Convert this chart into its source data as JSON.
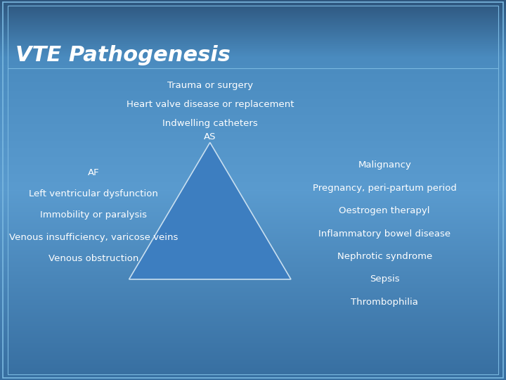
{
  "title": "VTE Pathogenesis",
  "bg_color_main": "#4a8bbf",
  "bg_color_dark": "#2d5f8a",
  "title_color": "#ffffff",
  "title_fontsize": 22,
  "top_center_labels": [
    "Trauma or surgery",
    "Heart valve disease or replacement",
    "Indwelling catheters",
    "AS"
  ],
  "left_labels": [
    "AF",
    "Left ventricular dysfunction",
    "Immobility or paralysis",
    "Venous insufficiency, varicose veins",
    "Venous obstruction"
  ],
  "right_labels": [
    "Malignancy",
    "Pregnancy, peri-partum period",
    "Oestrogen therapyl",
    "Inflammatory bowel disease",
    "Nephrotic syndrome",
    "Sepsis",
    "Thrombophilia"
  ],
  "triangle_fill": "#3d7ec0",
  "triangle_edge": "#c8dff0",
  "label_color": "#ffffff",
  "label_fontsize": 9.5,
  "title_box_border_color": "#7ab8e0",
  "inner_box_border_color": "#7ab8e0"
}
